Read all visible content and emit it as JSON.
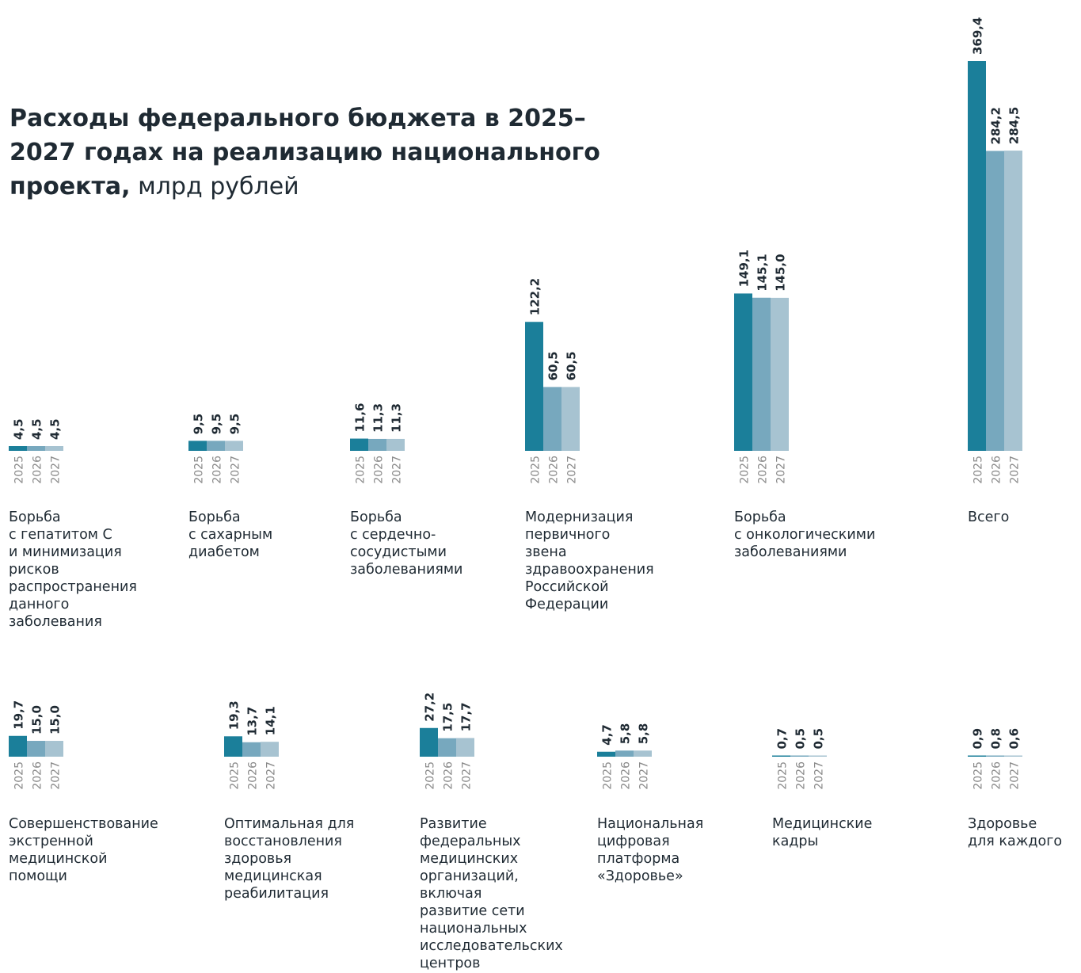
{
  "title": {
    "bold_part": "Расходы федерального бюджета в 2025–2027 годах на реализацию национального проекта,",
    "unit": "млрд рублей"
  },
  "colors": {
    "y2025": "#1b7f9a",
    "y2026": "#77a8be",
    "y2027": "#a7c3d1",
    "year_label": "#8a8a8a"
  },
  "chart_data": [
    {
      "type": "bar",
      "series": [
        {
          "name": "2025",
          "values": [
            4.5,
            9.5,
            11.6,
            122.2,
            149.1,
            369.4
          ]
        },
        {
          "name": "2026",
          "values": [
            4.5,
            9.5,
            11.3,
            60.5,
            145.1,
            284.2
          ]
        },
        {
          "name": "2027",
          "values": [
            4.5,
            9.5,
            11.3,
            60.5,
            145.0,
            284.5
          ]
        }
      ],
      "data_labels": [
        [
          "4,5",
          "4,5",
          "4,5"
        ],
        [
          "9,5",
          "9,5",
          "9,5"
        ],
        [
          "11,6",
          "11,3",
          "11,3"
        ],
        [
          "122,2",
          "60,5",
          "60,5"
        ],
        [
          "149,1",
          "145,1",
          "145,0"
        ],
        [
          "369,4",
          "284,2",
          "284,5"
        ]
      ],
      "categories": [
        [
          "Борьба",
          "с гепатитом С",
          "и минимизация",
          "рисков",
          "распространения",
          "данного",
          "заболевания"
        ],
        [
          "Борьба",
          "с сахарным",
          "диабетом"
        ],
        [
          "Борьба",
          "с сердечно-",
          "сосудистыми",
          "заболеваниями"
        ],
        [
          "Модернизация",
          "первичного",
          "звена",
          "здравоохранения",
          "Российской",
          "Федерации"
        ],
        [
          "Борьба",
          "с онкологическими",
          "заболеваниями"
        ],
        [
          "Всего"
        ]
      ]
    },
    {
      "type": "bar",
      "series": [
        {
          "name": "2025",
          "values": [
            19.7,
            19.3,
            27.2,
            4.7,
            0.7,
            0.9
          ]
        },
        {
          "name": "2026",
          "values": [
            15.0,
            13.7,
            17.5,
            5.8,
            0.5,
            0.8
          ]
        },
        {
          "name": "2027",
          "values": [
            15.0,
            14.1,
            17.7,
            5.8,
            0.5,
            0.6
          ]
        }
      ],
      "data_labels": [
        [
          "19,7",
          "15,0",
          "15,0"
        ],
        [
          "19,3",
          "13,7",
          "14,1"
        ],
        [
          "27,2",
          "17,5",
          "17,7"
        ],
        [
          "4,7",
          "5,8",
          "5,8"
        ],
        [
          "0,7",
          "0,5",
          "0,5"
        ],
        [
          "0,9",
          "0,8",
          "0,6"
        ]
      ],
      "categories": [
        [
          "Совершенствование",
          "экстренной",
          "медицинской",
          "помощи"
        ],
        [
          "Оптимальная для",
          "восстановления",
          "здоровья",
          "медицинская",
          "реабилитация"
        ],
        [
          "Развитие",
          "федеральных",
          "медицинских",
          "организаций,",
          "включая",
          "развитие сети",
          "национальных",
          "исследовательских",
          "центров"
        ],
        [
          "Национальная",
          "цифровая",
          "платформа",
          "«Здоровье»"
        ],
        [
          "Медицинские",
          "кадры"
        ],
        [
          "Здоровье",
          "для каждого"
        ]
      ]
    }
  ]
}
